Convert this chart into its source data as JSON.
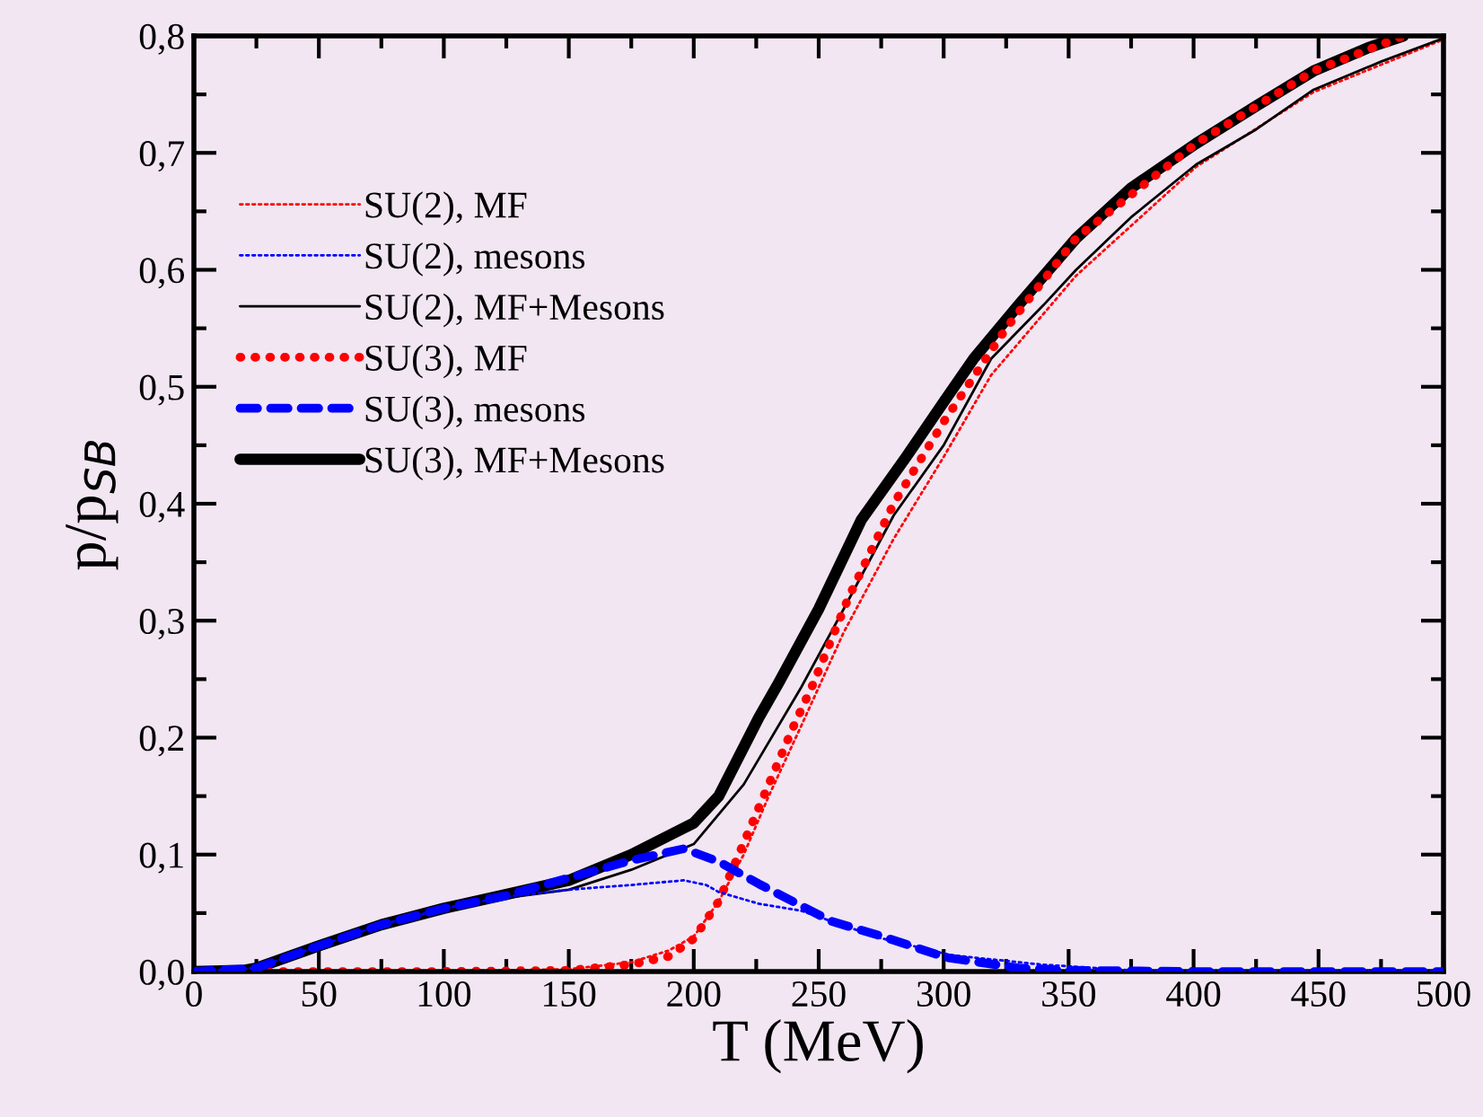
{
  "chart_data": {
    "type": "line",
    "xlabel": "T (MeV)",
    "ylabel": "p/p$_{SB}$",
    "xlim": [
      0,
      500
    ],
    "ylim": [
      0,
      0.8
    ],
    "xticks": [
      0,
      {
        "value": 25,
        "label": null
      },
      50,
      {
        "value": 75,
        "label": null
      },
      100,
      {
        "value": 125,
        "label": null
      },
      150,
      {
        "value": 175,
        "label": null
      },
      200,
      {
        "value": 225,
        "label": null
      },
      250,
      {
        "value": 275,
        "label": null
      },
      300,
      {
        "value": 325,
        "label": null
      },
      350,
      {
        "value": 375,
        "label": null
      },
      400,
      {
        "value": 425,
        "label": null
      },
      450,
      {
        "value": 475,
        "label": null
      },
      500
    ],
    "yticks": [
      {
        "value": 0,
        "label": "0,0"
      },
      {
        "value": 0.05,
        "label": null
      },
      {
        "value": 0.1,
        "label": "0,1"
      },
      {
        "value": 0.15,
        "label": null
      },
      {
        "value": 0.2,
        "label": "0,2"
      },
      {
        "value": 0.25,
        "label": null
      },
      {
        "value": 0.3,
        "label": "0,3"
      },
      {
        "value": 0.35,
        "label": null
      },
      {
        "value": 0.4,
        "label": "0,4"
      },
      {
        "value": 0.45,
        "label": null
      },
      {
        "value": 0.5,
        "label": "0,5"
      },
      {
        "value": 0.55,
        "label": null
      },
      {
        "value": 0.6,
        "label": "0,6"
      },
      {
        "value": 0.65,
        "label": null
      },
      {
        "value": 0.7,
        "label": "0,7"
      },
      {
        "value": 0.75,
        "label": null
      },
      {
        "value": 0.8,
        "label": "0,8"
      }
    ],
    "grid": false,
    "legend": "upper left",
    "series": [
      {
        "name": "SU(2), MF",
        "color": "#ff0000",
        "line_style": "dotted",
        "x": [
          0,
          100,
          150,
          175,
          190,
          200,
          210,
          220,
          230,
          243,
          260,
          280,
          300,
          319,
          353,
          401,
          448,
          500
        ],
        "values": [
          0,
          0,
          0.002,
          0.008,
          0.018,
          0.03,
          0.06,
          0.1,
          0.15,
          0.21,
          0.29,
          0.37,
          0.44,
          0.51,
          0.595,
          0.688,
          0.752,
          0.797
        ]
      },
      {
        "name": "SU(2), mesons",
        "color": "#0000ff",
        "line_style": "dotted",
        "x": [
          0,
          25,
          50,
          75,
          100,
          125,
          150,
          175,
          196,
          205,
          210,
          226,
          243,
          274,
          303,
          339,
          375,
          400,
          450,
          500
        ],
        "values": [
          0,
          0.003,
          0.022,
          0.04,
          0.054,
          0.064,
          0.07,
          0.074,
          0.078,
          0.074,
          0.068,
          0.058,
          0.052,
          0.029,
          0.014,
          0.006,
          0.001,
          0,
          0,
          0
        ]
      },
      {
        "name": "SU(2), MF+Mesons",
        "color": "#000000",
        "line_style": "solid",
        "x": [
          0,
          25,
          50,
          75,
          100,
          125,
          150,
          175,
          200,
          220,
          243,
          260,
          280,
          300,
          319,
          340,
          353,
          375,
          401,
          425,
          448,
          475,
          500
        ],
        "values": [
          0,
          0.003,
          0.024,
          0.042,
          0.055,
          0.063,
          0.07,
          0.087,
          0.109,
          0.16,
          0.243,
          0.31,
          0.39,
          0.45,
          0.524,
          0.57,
          0.6,
          0.645,
          0.69,
          0.72,
          0.754,
          0.778,
          0.798
        ]
      },
      {
        "name": "SU(3), MF",
        "color": "#ff0000",
        "line_style": "dotted",
        "x": [
          0,
          100,
          150,
          175,
          190,
          200,
          210,
          220,
          230,
          240,
          248,
          262,
          280,
          300,
          325,
          353,
          401,
          448,
          484
        ],
        "values": [
          0,
          0,
          0.001,
          0.006,
          0.013,
          0.028,
          0.06,
          0.11,
          0.16,
          0.21,
          0.247,
          0.32,
          0.4,
          0.47,
          0.55,
          0.627,
          0.708,
          0.77,
          0.8
        ]
      },
      {
        "name": "SU(3), mesons",
        "color": "#0000ff",
        "line_style": "dashed",
        "x": [
          0,
          25,
          50,
          75,
          100,
          125,
          150,
          175,
          196,
          210,
          226,
          255,
          274,
          301,
          330,
          350,
          400,
          450,
          500
        ],
        "values": [
          0,
          0.003,
          0.022,
          0.04,
          0.054,
          0.065,
          0.08,
          0.095,
          0.105,
          0.094,
          0.075,
          0.043,
          0.031,
          0.012,
          0.003,
          0.001,
          0,
          0,
          0
        ]
      },
      {
        "name": "SU(3), MF+Mesons",
        "color": "#000000",
        "line_style": "solid",
        "x": [
          0,
          20,
          25,
          50,
          75,
          100,
          125,
          150,
          175,
          200,
          210,
          226,
          234,
          250,
          267,
          285,
          300,
          312,
          330,
          353,
          375,
          401,
          425,
          448,
          470,
          484
        ],
        "values": [
          0,
          0.001,
          0.003,
          0.022,
          0.04,
          0.054,
          0.066,
          0.078,
          0.1,
          0.127,
          0.15,
          0.217,
          0.247,
          0.31,
          0.386,
          0.44,
          0.487,
          0.524,
          0.57,
          0.627,
          0.67,
          0.708,
          0.74,
          0.77,
          0.79,
          0.8
        ]
      }
    ]
  }
}
